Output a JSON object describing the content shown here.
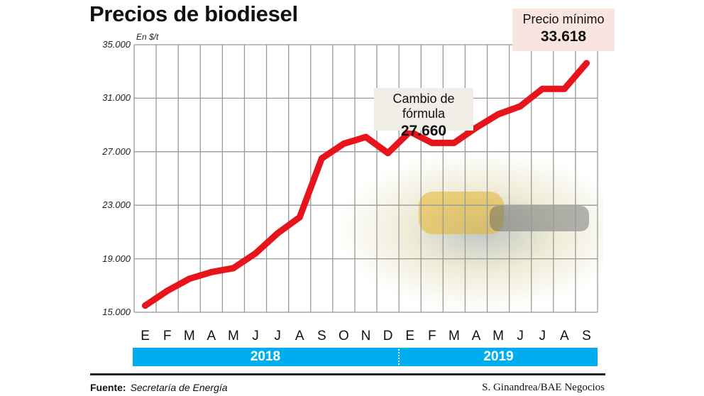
{
  "header": {
    "title": "Precios de biodiesel",
    "unit": "En $/t"
  },
  "colors": {
    "line": "#e8141c",
    "year_bar": "#00aeef",
    "grid": "#999999"
  },
  "chart_data": {
    "type": "line",
    "title": "Precios de biodiesel",
    "ylabel": "En $/t",
    "ylim": [
      15000,
      35000
    ],
    "yticks": [
      "35.000",
      "31.000",
      "27.000",
      "23.000",
      "19.000",
      "15.000"
    ],
    "ytick_values": [
      35000,
      31000,
      27000,
      23000,
      19000,
      15000
    ],
    "categories": [
      "E",
      "F",
      "M",
      "A",
      "M",
      "J",
      "J",
      "A",
      "S",
      "O",
      "N",
      "D",
      "E",
      "F",
      "M",
      "A",
      "M",
      "J",
      "J",
      "A",
      "S"
    ],
    "years": [
      "2018",
      "2019"
    ],
    "values": [
      15500,
      16600,
      17500,
      18000,
      18300,
      19400,
      20900,
      22100,
      26500,
      27600,
      28100,
      26900,
      28500,
      27660,
      27660,
      28800,
      29800,
      30400,
      31700,
      31700,
      33618
    ],
    "grid": true,
    "annotations": [
      {
        "label": "Cambio de fórmula",
        "value": "27.660"
      },
      {
        "label": "Precio mínimo",
        "value": "33.618"
      }
    ]
  },
  "footer": {
    "source_label": "Fuente:",
    "source": "Secretaría de Energía",
    "credit": "S. Ginandrea/BAE Negocios"
  }
}
